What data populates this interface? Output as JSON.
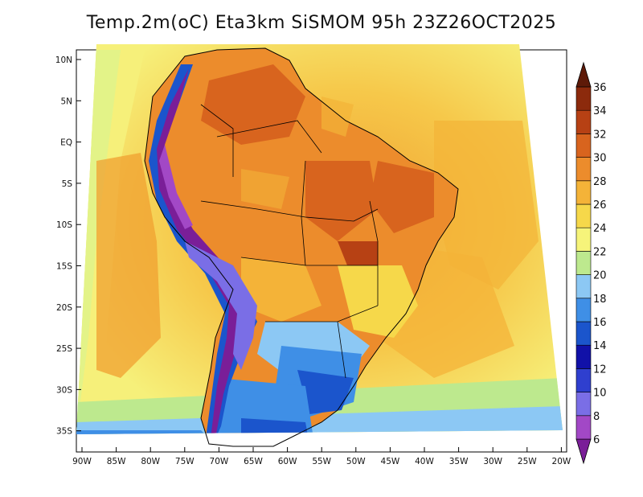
{
  "title": "Temp.2m(oC) Eta3km SiSMOM 95h 23Z26OCT2025",
  "lon_ticks": [
    "90W",
    "85W",
    "80W",
    "75W",
    "70W",
    "65W",
    "60W",
    "55W",
    "50W",
    "45W",
    "40W",
    "35W",
    "30W",
    "25W",
    "20W"
  ],
  "lat_ticks": [
    "10N",
    "5N",
    "EQ",
    "5S",
    "10S",
    "15S",
    "20S",
    "25S",
    "30S",
    "35S"
  ],
  "colorbar": {
    "labels": [
      "6",
      "8",
      "10",
      "12",
      "14",
      "16",
      "18",
      "20",
      "22",
      "24",
      "26",
      "28",
      "30",
      "32",
      "34",
      "36"
    ],
    "colors": [
      "#7a1e98",
      "#a248c6",
      "#7a6ee6",
      "#2f3fcf",
      "#1111a8",
      "#1b55cc",
      "#3f8fe6",
      "#8cc8f4",
      "#bde98e",
      "#f6f47a",
      "#f6d84a",
      "#f4b338",
      "#ec8c2c",
      "#d8641e",
      "#b74114",
      "#8c2a0c",
      "#5e1a08"
    ]
  },
  "legend_palette_note": ""
}
